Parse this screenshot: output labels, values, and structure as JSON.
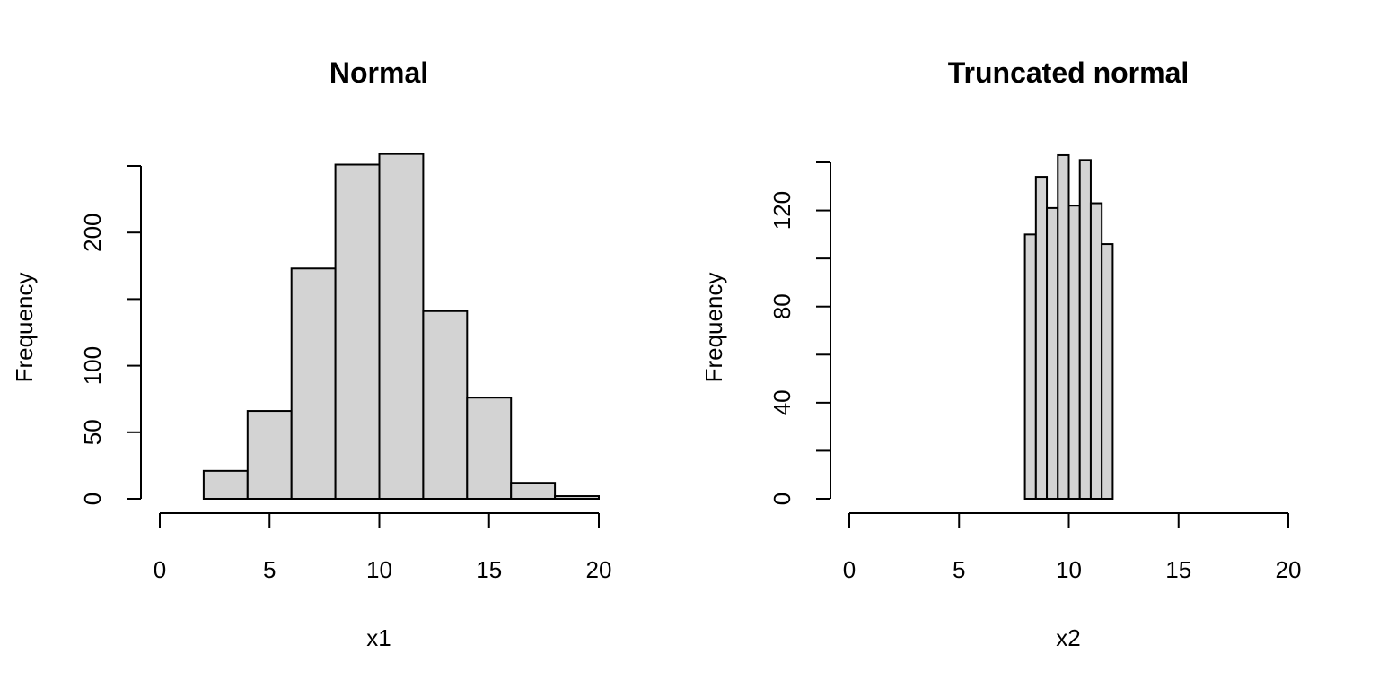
{
  "chart_data": [
    {
      "type": "bar",
      "title": "Normal",
      "xlabel": "x1",
      "ylabel": "Frequency",
      "xlim": [
        0,
        20
      ],
      "ylim": [
        0,
        250
      ],
      "x_ticks": [
        0,
        5,
        10,
        15,
        20
      ],
      "y_ticks": [
        0,
        50,
        100,
        150,
        200,
        250
      ],
      "y_tick_labels": [
        "0",
        "50",
        "100",
        "",
        "200",
        ""
      ],
      "bins": [
        {
          "x0": 2,
          "x1": 4,
          "value": 21
        },
        {
          "x0": 4,
          "x1": 6,
          "value": 66
        },
        {
          "x0": 6,
          "x1": 8,
          "value": 173
        },
        {
          "x0": 8,
          "x1": 10,
          "value": 251
        },
        {
          "x0": 10,
          "x1": 12,
          "value": 259
        },
        {
          "x0": 12,
          "x1": 14,
          "value": 141
        },
        {
          "x0": 14,
          "x1": 16,
          "value": 76
        },
        {
          "x0": 16,
          "x1": 18,
          "value": 12
        },
        {
          "x0": 18,
          "x1": 20,
          "value": 2
        }
      ]
    },
    {
      "type": "bar",
      "title": "Truncated normal",
      "xlabel": "x2",
      "ylabel": "Frequency",
      "xlim": [
        0,
        20
      ],
      "ylim": [
        0,
        140
      ],
      "x_ticks": [
        0,
        5,
        10,
        15,
        20
      ],
      "y_ticks": [
        0,
        20,
        40,
        60,
        80,
        100,
        120,
        140
      ],
      "y_tick_labels": [
        "0",
        "",
        "40",
        "",
        "80",
        "",
        "120",
        ""
      ],
      "bins": [
        {
          "x0": 8.0,
          "x1": 8.5,
          "value": 110
        },
        {
          "x0": 8.5,
          "x1": 9.0,
          "value": 134
        },
        {
          "x0": 9.0,
          "x1": 9.5,
          "value": 121
        },
        {
          "x0": 9.5,
          "x1": 10.0,
          "value": 143
        },
        {
          "x0": 10.0,
          "x1": 10.5,
          "value": 122
        },
        {
          "x0": 10.5,
          "x1": 11.0,
          "value": 141
        },
        {
          "x0": 11.0,
          "x1": 11.5,
          "value": 123
        },
        {
          "x0": 11.5,
          "x1": 12.0,
          "value": 106
        }
      ]
    }
  ]
}
